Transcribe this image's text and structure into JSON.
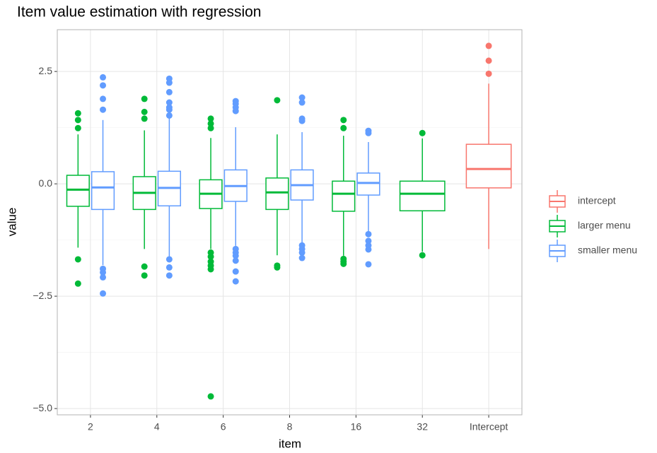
{
  "chart_data": {
    "type": "boxplot",
    "title": "Item value estimation with regression",
    "x_label": "item",
    "y_label": "value",
    "categories": [
      "2",
      "4",
      "6",
      "8",
      "16",
      "32",
      "Intercept"
    ],
    "ylim": [
      -5.14,
      3.43
    ],
    "yticks": [
      {
        "value": -5,
        "label": "−5.0"
      },
      {
        "value": -2.5,
        "label": "−2.5"
      },
      {
        "value": 0,
        "label": "0.0"
      },
      2.5
    ],
    "yminorticks": [
      -3.75,
      -1.25,
      1.25
    ],
    "grid": true,
    "legend": "right",
    "series": [
      {
        "name": "intercept",
        "color": "#F8766D",
        "boxes": [
          null,
          null,
          null,
          null,
          null,
          null,
          {
            "min": -1.45,
            "q1": -0.09,
            "median": 0.33,
            "q3": 0.88,
            "max": 2.23,
            "outliers": [
              3.07,
              2.74,
              2.45
            ]
          }
        ]
      },
      {
        "name": "larger menu",
        "color": "#00BA38",
        "boxes": [
          {
            "min": -1.42,
            "q1": -0.5,
            "median": -0.13,
            "q3": 0.19,
            "max": 1.1,
            "outliers": [
              1.57,
              1.42,
              1.24,
              -1.68,
              -2.22
            ]
          },
          {
            "min": -1.45,
            "q1": -0.57,
            "median": -0.2,
            "q3": 0.16,
            "max": 1.19,
            "outliers": [
              1.89,
              1.6,
              1.45,
              -1.84,
              -2.04
            ]
          },
          {
            "min": -1.45,
            "q1": -0.55,
            "median": -0.22,
            "q3": 0.09,
            "max": 1.02,
            "outliers": [
              1.45,
              1.34,
              1.24,
              -1.53,
              -1.62,
              -1.73,
              -1.82,
              -1.9,
              -4.73
            ]
          },
          {
            "min": -1.59,
            "q1": -0.57,
            "median": -0.19,
            "q3": 0.13,
            "max": 1.1,
            "outliers": [
              1.86,
              -1.82,
              -1.86
            ]
          },
          {
            "min": -1.6,
            "q1": -0.61,
            "median": -0.22,
            "q3": 0.06,
            "max": 1.07,
            "outliers": [
              1.42,
              1.24,
              -1.67,
              -1.73,
              -1.78
            ]
          },
          {
            "min": -1.51,
            "q1": -0.6,
            "median": -0.22,
            "q3": 0.06,
            "max": 1.01,
            "outliers": [
              1.13,
              -1.59
            ]
          },
          null
        ]
      },
      {
        "name": "smaller menu",
        "color": "#619CFF",
        "boxes": [
          {
            "min": -1.81,
            "q1": -0.57,
            "median": -0.08,
            "q3": 0.27,
            "max": 1.42,
            "outliers": [
              2.37,
              2.19,
              1.89,
              1.65,
              -1.89,
              -1.97,
              -2.08,
              -2.44
            ]
          },
          {
            "min": -1.65,
            "q1": -0.49,
            "median": -0.09,
            "q3": 0.28,
            "max": 1.49,
            "outliers": [
              2.34,
              2.25,
              2.04,
              1.81,
              1.7,
              1.65,
              1.52,
              -1.68,
              -1.86,
              -2.04
            ]
          },
          {
            "min": -1.38,
            "q1": -0.39,
            "median": -0.05,
            "q3": 0.31,
            "max": 1.26,
            "outliers": [
              1.84,
              1.78,
              1.7,
              1.62,
              -1.45,
              -1.53,
              -1.6,
              -1.71,
              -1.95,
              -2.17
            ]
          },
          {
            "min": -1.31,
            "q1": -0.36,
            "median": -0.03,
            "q3": 0.31,
            "max": 1.15,
            "outliers": [
              1.92,
              1.81,
              1.45,
              1.4,
              -1.37,
              -1.45,
              -1.53,
              -1.65
            ]
          },
          {
            "min": -1.07,
            "q1": -0.25,
            "median": 0.02,
            "q3": 0.24,
            "max": 0.93,
            "outliers": [
              1.18,
              1.13,
              -1.12,
              -1.27,
              -1.37,
              -1.46,
              -1.79
            ]
          },
          null,
          null
        ]
      }
    ]
  }
}
